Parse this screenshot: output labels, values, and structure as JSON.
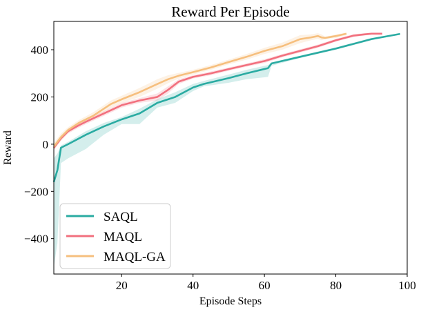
{
  "chart_data": {
    "type": "line",
    "title": "Reward Per Episode",
    "xlabel": "Episode Steps",
    "ylabel": "Reward",
    "xlim": [
      1,
      100
    ],
    "ylim": [
      -550,
      520
    ],
    "xticks": [
      20,
      40,
      60,
      80,
      100
    ],
    "yticks": [
      -400,
      -200,
      0,
      200,
      400
    ],
    "grid": false,
    "legend": "bottom-left",
    "series": [
      {
        "name": "SAQL",
        "color": "#2aaba2",
        "x": [
          1,
          2,
          3,
          5,
          10,
          15,
          20,
          25,
          30,
          35,
          40,
          43,
          50,
          55,
          61,
          62,
          70,
          80,
          90,
          98
        ],
        "y": [
          -160,
          -110,
          -15,
          0,
          40,
          75,
          105,
          130,
          175,
          200,
          240,
          255,
          280,
          300,
          322,
          342,
          370,
          405,
          445,
          467
        ],
        "band_upper": [
          -60,
          -40,
          -5,
          10,
          55,
          90,
          115,
          150,
          190,
          220,
          255,
          268,
          295,
          315,
          335,
          345,
          375,
          410,
          450,
          470
        ],
        "band_lower": [
          -520,
          -420,
          -80,
          -60,
          -20,
          40,
          85,
          85,
          155,
          175,
          225,
          245,
          260,
          275,
          285,
          332,
          365,
          400,
          440,
          465
        ]
      },
      {
        "name": "MAQL",
        "color": "#f2707e",
        "x": [
          1,
          3,
          5,
          8,
          10,
          15,
          20,
          25,
          30,
          33,
          36,
          40,
          45,
          50,
          55,
          60,
          65,
          70,
          75,
          80,
          85,
          88,
          90,
          93
        ],
        "y": [
          -15,
          25,
          55,
          80,
          95,
          130,
          165,
          185,
          200,
          230,
          265,
          285,
          300,
          318,
          335,
          352,
          375,
          395,
          415,
          440,
          460,
          465,
          468,
          468
        ],
        "band_upper": [
          -5,
          35,
          65,
          90,
          105,
          140,
          175,
          195,
          215,
          245,
          275,
          292,
          308,
          325,
          342,
          360,
          382,
          402,
          422,
          446,
          466,
          470,
          472,
          472
        ],
        "band_lower": [
          -25,
          15,
          45,
          70,
          85,
          120,
          155,
          175,
          185,
          215,
          255,
          278,
          292,
          311,
          328,
          344,
          368,
          388,
          408,
          434,
          454,
          460,
          464,
          464
        ]
      },
      {
        "name": "MAQL-GA",
        "color": "#f6bf7e",
        "x": [
          1,
          3,
          5,
          8,
          12,
          17,
          20,
          25,
          30,
          33,
          36,
          40,
          45,
          50,
          55,
          60,
          65,
          70,
          73,
          75,
          76,
          77,
          80,
          83
        ],
        "y": [
          -10,
          30,
          60,
          90,
          120,
          170,
          190,
          220,
          255,
          275,
          290,
          305,
          325,
          348,
          370,
          395,
          415,
          445,
          452,
          458,
          452,
          450,
          458,
          468
        ],
        "band_upper": [
          5,
          45,
          72,
          102,
          135,
          185,
          205,
          238,
          275,
          292,
          302,
          315,
          335,
          358,
          382,
          408,
          430,
          462,
          465,
          470,
          465,
          455,
          465,
          472
        ],
        "band_lower": [
          -25,
          15,
          48,
          78,
          105,
          155,
          175,
          200,
          235,
          258,
          278,
          295,
          315,
          338,
          358,
          382,
          400,
          428,
          440,
          446,
          440,
          445,
          450,
          462
        ]
      }
    ]
  }
}
